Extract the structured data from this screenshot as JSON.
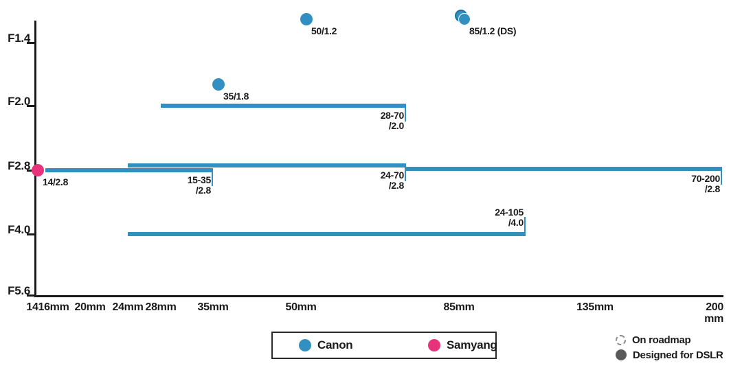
{
  "chart_data": {
    "type": "scatter",
    "description": "Lens lineup chart: focal length (mm) vs maximum aperture (F-stop). Dots are prime lenses, horizontal bars are zoom lenses.",
    "x_axis": {
      "unit": "mm",
      "ticks": [
        {
          "label": "14",
          "mm": 14
        },
        {
          "label": "16mm",
          "mm": 16
        },
        {
          "label": "20mm",
          "mm": 20
        },
        {
          "label": "24mm",
          "mm": 24
        },
        {
          "label": "28mm",
          "mm": 28
        },
        {
          "label": "35mm",
          "mm": 35
        },
        {
          "label": "50mm",
          "mm": 50
        },
        {
          "label": "85mm",
          "mm": 85
        },
        {
          "label": "135mm",
          "mm": 135
        },
        {
          "label": "200",
          "mm": 200
        }
      ],
      "range_mm": [
        14,
        200
      ]
    },
    "y_axis": {
      "ticks": [
        {
          "label": "F1.4",
          "f": 1.4
        },
        {
          "label": "F2.0",
          "f": 2.0
        },
        {
          "label": "F2.8",
          "f": 2.8
        },
        {
          "label": "F4.0",
          "f": 4.0
        },
        {
          "label": "F5.6",
          "f": 5.6
        }
      ],
      "scale": "one-stop-per-step, smaller f-number is higher"
    },
    "primes": [
      {
        "brand": "Canon",
        "label": "50/1.2",
        "mm": 50,
        "f": 1.2,
        "overlapping_pair": false
      },
      {
        "brand": "Canon",
        "label": "85/1.2 (DS)",
        "mm": 85,
        "f": 1.2,
        "overlapping_pair": true
      },
      {
        "brand": "Canon",
        "label": "35/1.8",
        "mm": 35,
        "f": 1.8,
        "overlapping_pair": false
      },
      {
        "brand": "Samyang",
        "label": "14/2.8",
        "mm": 14,
        "f": 2.8,
        "overlapping_pair": false
      }
    ],
    "zooms": [
      {
        "brand": "Canon",
        "range_label": "28-70",
        "f_label": "/2.0",
        "from_mm": 28,
        "to_mm": 70,
        "f": 2.0,
        "label_side": "below"
      },
      {
        "brand": "Canon",
        "range_label": "15-35",
        "f_label": "/2.8",
        "from_mm": 15,
        "to_mm": 35,
        "f": 2.8,
        "label_side": "below"
      },
      {
        "brand": "Canon",
        "range_label": "24-70",
        "f_label": "/2.8",
        "from_mm": 24,
        "to_mm": 70,
        "f": 2.8,
        "label_side": "below"
      },
      {
        "brand": "Canon",
        "range_label": "70-200",
        "f_label": "/2.8",
        "from_mm": 70,
        "to_mm": 200,
        "f": 2.8,
        "label_side": "below"
      },
      {
        "brand": "Canon",
        "range_label": "24-105",
        "f_label": "/4.0",
        "from_mm": 24,
        "to_mm": 105,
        "f": 4.0,
        "label_side": "above"
      }
    ],
    "legend": [
      {
        "name": "Canon",
        "color": "#3190c0"
      },
      {
        "name": "Samyang",
        "color": "#e8327c"
      }
    ],
    "key": [
      {
        "label": "On roadmap",
        "icon": "dashed-circle-icon"
      },
      {
        "label": "Designed for DSLR",
        "icon": "burst-circle-icon"
      }
    ]
  }
}
